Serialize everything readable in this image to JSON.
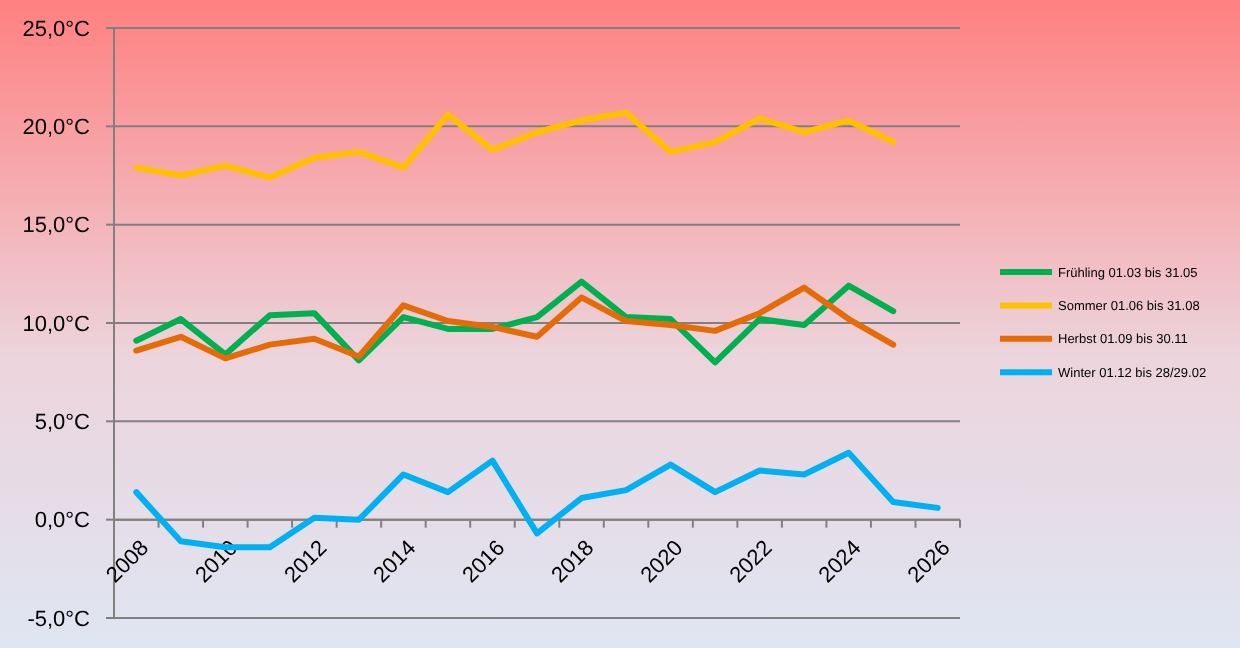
{
  "chart_data": {
    "type": "line",
    "categories": [
      "2008",
      null,
      "2010",
      null,
      "2012",
      null,
      "2014",
      null,
      "2016",
      null,
      "2018",
      null,
      "2020",
      null,
      "2022",
      null,
      "2024",
      null,
      "2026"
    ],
    "series": [
      {
        "name": "Frühling 01.03 bis 31.05",
        "color": "#00b050",
        "values": [
          9.1,
          10.2,
          8.4,
          10.4,
          10.5,
          8.1,
          10.3,
          9.7,
          9.7,
          10.3,
          12.1,
          10.3,
          10.2,
          8.0,
          10.2,
          9.9,
          11.9,
          10.6,
          null
        ]
      },
      {
        "name": "Sommer 01.06 bis 31.08",
        "color": "#ffc000",
        "values": [
          17.9,
          17.5,
          18.0,
          17.4,
          18.4,
          18.7,
          17.9,
          20.6,
          18.8,
          19.7,
          20.3,
          20.7,
          18.7,
          19.2,
          20.4,
          19.7,
          20.3,
          19.2,
          null
        ]
      },
      {
        "name": "Herbst 01.09 bis 30.11",
        "color": "#e36c09",
        "values": [
          8.6,
          9.3,
          8.2,
          8.9,
          9.2,
          8.3,
          10.9,
          10.1,
          9.8,
          9.3,
          11.3,
          10.1,
          9.9,
          9.6,
          10.5,
          11.8,
          10.2,
          8.9,
          null
        ]
      },
      {
        "name": "Winter 01.12 bis 28/29.02",
        "color": "#00b0f0",
        "values": [
          1.4,
          -1.1,
          -1.4,
          -1.4,
          0.1,
          0.0,
          2.3,
          1.4,
          3.0,
          -0.7,
          1.1,
          1.5,
          2.8,
          1.4,
          2.5,
          2.3,
          3.4,
          0.9,
          0.6
        ]
      }
    ],
    "ylim": [
      -5,
      25
    ],
    "yticks": [
      {
        "value": -5,
        "label": "-5,0°C"
      },
      {
        "value": 0,
        "label": "0,0°C"
      },
      {
        "value": 5,
        "label": "5,0°C"
      },
      {
        "value": 10,
        "label": "10,0°C"
      },
      {
        "value": 15,
        "label": "15,0°C"
      },
      {
        "value": 20,
        "label": "20,0°C"
      },
      {
        "value": 25,
        "label": "25,0°C"
      }
    ],
    "grid": "y",
    "legend": "right",
    "marker": "none",
    "line_style": "solid"
  }
}
